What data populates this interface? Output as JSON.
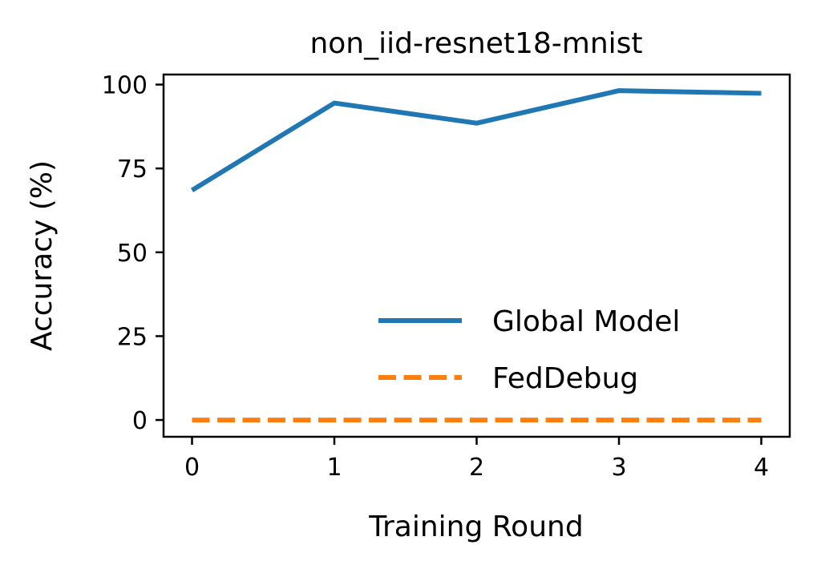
{
  "chart_data": {
    "type": "line",
    "title": "non_iid-resnet18-mnist",
    "xlabel": "Training Round",
    "ylabel": "Accuracy (%)",
    "x": [
      0,
      1,
      2,
      3,
      4
    ],
    "xticks": [
      "0",
      "1",
      "2",
      "3",
      "4"
    ],
    "yticks": [
      "0",
      "25",
      "50",
      "75",
      "100"
    ],
    "xlim": [
      -0.2,
      4.2
    ],
    "ylim": [
      -5,
      103
    ],
    "grid": false,
    "legend_position": "lower-right",
    "series": [
      {
        "name": "Global Model",
        "values": [
          68.5,
          94.5,
          88.5,
          98.2,
          97.4
        ],
        "color": "#1f77b4",
        "style": "solid"
      },
      {
        "name": "FedDebug",
        "values": [
          0,
          0,
          0,
          0,
          0
        ],
        "color": "#ff7f0e",
        "style": "dashed"
      }
    ]
  }
}
